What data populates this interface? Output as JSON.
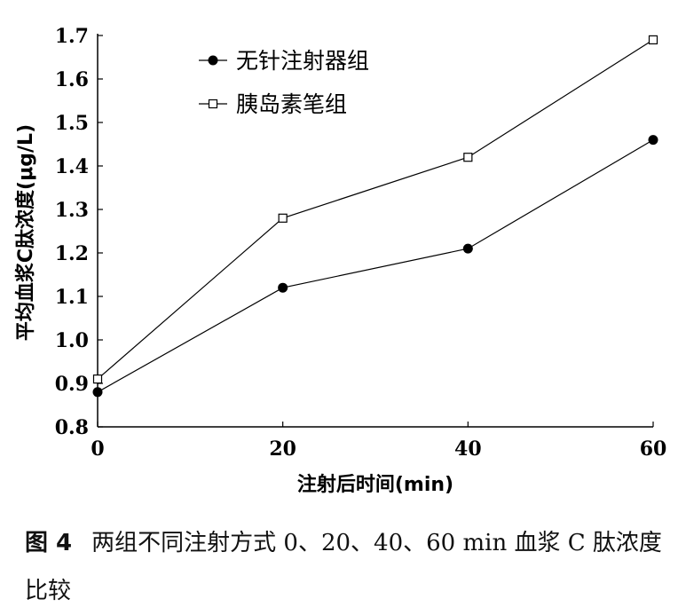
{
  "chart_data": {
    "type": "line",
    "x": [
      0,
      20,
      40,
      60
    ],
    "series": [
      {
        "name": "无针注射器组",
        "marker": "filled-circle",
        "values": [
          0.88,
          1.12,
          1.21,
          1.46
        ]
      },
      {
        "name": "胰岛素笔组",
        "marker": "open-square",
        "values": [
          0.91,
          1.28,
          1.42,
          1.69
        ]
      }
    ],
    "xlabel": "注射后时间(min)",
    "ylabel": "平均血浆C肽浓度(μg/L)",
    "xlim": [
      0,
      60
    ],
    "ylim": [
      0.8,
      1.7
    ],
    "xticks": [
      "0",
      "20",
      "40",
      "60"
    ],
    "yticks": [
      "0.8",
      "0.9",
      "1.0",
      "1.1",
      "1.2",
      "1.3",
      "1.4",
      "1.5",
      "1.6",
      "1.7"
    ],
    "grid": false,
    "legend_position": "top-left"
  },
  "caption": {
    "label": "图 4",
    "text": "两组不同注射方式 0、20、40、60 min 血浆 C 肽浓度比较"
  }
}
